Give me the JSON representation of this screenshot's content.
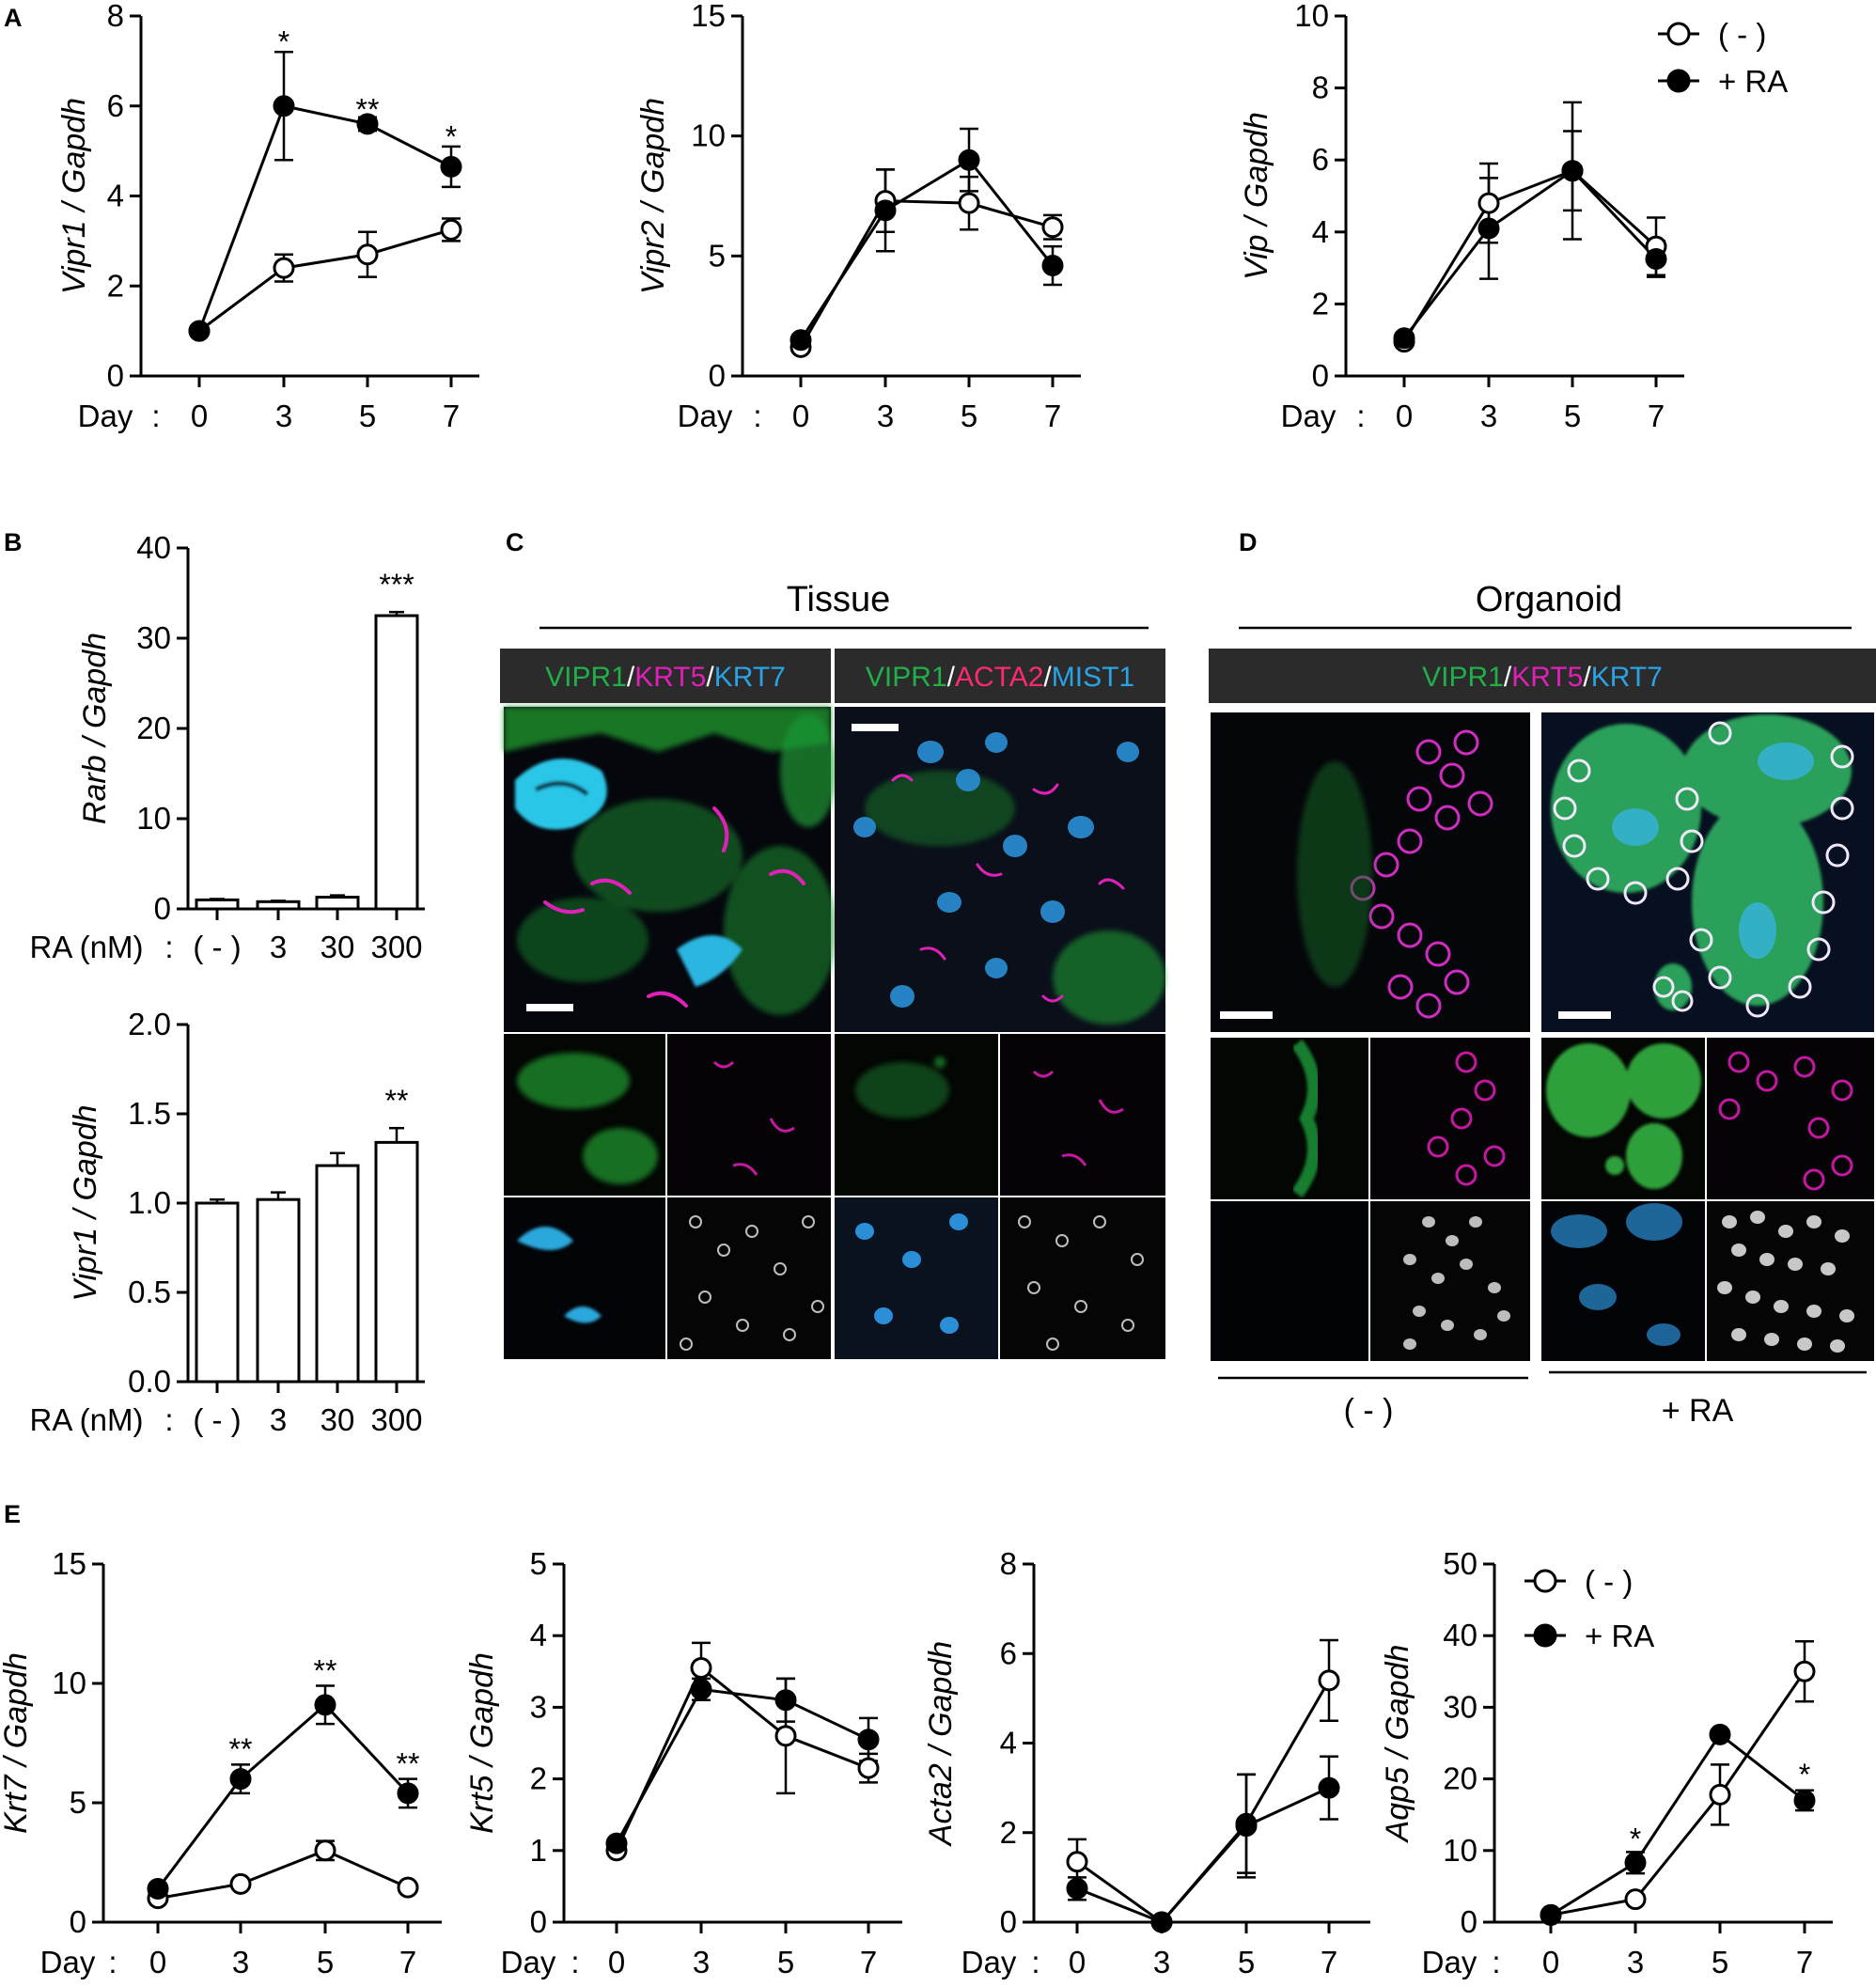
{
  "panel_labels": {
    "A": "A",
    "B": "B",
    "C": "C",
    "D": "D",
    "E": "E"
  },
  "legend": {
    "untreated": "( - )",
    "treated": "+ RA"
  },
  "day_prefix": "Day",
  "ra_prefix": "RA (nM)",
  "colors": {
    "green": "#1fb04a",
    "magenta": "#e020b8",
    "blue": "#29a3e6",
    "red": "#ff2a6e",
    "header_bg": "#2b2b2b"
  },
  "microscopy": {
    "C": {
      "title": "Tissue",
      "headers": [
        [
          {
            "text": "VIPR1",
            "color": "#1fb04a"
          },
          {
            "text": "/",
            "color": "#ffffff"
          },
          {
            "text": "KRT5",
            "color": "#e020b8"
          },
          {
            "text": "/",
            "color": "#ffffff"
          },
          {
            "text": "KRT7",
            "color": "#29a3e6"
          }
        ],
        [
          {
            "text": "VIPR1",
            "color": "#1fb04a"
          },
          {
            "text": "/",
            "color": "#ffffff"
          },
          {
            "text": "ACTA2",
            "color": "#ff2a6e"
          },
          {
            "text": "/",
            "color": "#ffffff"
          },
          {
            "text": "MIST1",
            "color": "#29a3e6"
          }
        ]
      ]
    },
    "D": {
      "title": "Organoid",
      "headers": [
        [
          {
            "text": "VIPR1",
            "color": "#1fb04a"
          },
          {
            "text": "/",
            "color": "#ffffff"
          },
          {
            "text": "KRT5",
            "color": "#e020b8"
          },
          {
            "text": "/",
            "color": "#ffffff"
          },
          {
            "text": "KRT7",
            "color": "#29a3e6"
          }
        ]
      ],
      "conditions": [
        "( - )",
        "+ RA"
      ]
    }
  },
  "chart_data": [
    {
      "id": "A1",
      "type": "line",
      "ylabel": "Vipr1 / Gapdh",
      "x": [
        "0",
        "3",
        "5",
        "7"
      ],
      "ylim": [
        0,
        8
      ],
      "yticks": [
        0,
        2,
        4,
        6,
        8
      ],
      "series": [
        {
          "name": "( - )",
          "filled": false,
          "values": [
            1.0,
            2.4,
            2.7,
            3.25
          ],
          "errors": [
            0.1,
            0.3,
            0.5,
            0.25
          ]
        },
        {
          "name": "+ RA",
          "filled": true,
          "values": [
            1.0,
            6.0,
            5.6,
            4.65
          ],
          "errors": [
            0.1,
            1.2,
            0.15,
            0.45
          ]
        }
      ],
      "annotations": [
        {
          "x": "3",
          "y": 7.4,
          "text": "*"
        },
        {
          "x": "5",
          "y": 5.9,
          "text": "**"
        },
        {
          "x": "7",
          "y": 5.3,
          "text": "*"
        }
      ]
    },
    {
      "id": "A2",
      "type": "line",
      "ylabel": "Vipr2 / Gapdh",
      "x": [
        "0",
        "3",
        "5",
        "7"
      ],
      "ylim": [
        0,
        15
      ],
      "yticks": [
        0,
        5,
        10,
        15
      ],
      "series": [
        {
          "name": "( - )",
          "filled": false,
          "values": [
            1.2,
            7.3,
            7.2,
            6.2
          ],
          "errors": [
            0.2,
            1.3,
            1.1,
            0.5
          ]
        },
        {
          "name": "+ RA",
          "filled": true,
          "values": [
            1.5,
            6.9,
            9.0,
            4.6
          ],
          "errors": [
            0.2,
            1.7,
            1.3,
            0.8
          ]
        }
      ],
      "annotations": []
    },
    {
      "id": "A3",
      "type": "line",
      "ylabel": "Vip / Gapdh",
      "x": [
        "0",
        "3",
        "5",
        "7"
      ],
      "ylim": [
        0,
        10
      ],
      "yticks": [
        0,
        2,
        4,
        6,
        8,
        10
      ],
      "series": [
        {
          "name": "( - )",
          "filled": false,
          "values": [
            0.95,
            4.8,
            5.7,
            3.6
          ],
          "errors": [
            0.1,
            1.1,
            1.1,
            0.8
          ]
        },
        {
          "name": "+ RA",
          "filled": true,
          "values": [
            1.05,
            4.1,
            5.7,
            3.25
          ],
          "errors": [
            0.1,
            1.4,
            1.9,
            0.5
          ]
        }
      ],
      "annotations": []
    },
    {
      "id": "B1",
      "type": "bar",
      "ylabel": "Rarb / Gapdh",
      "categories": [
        "( - )",
        "3",
        "30",
        "300"
      ],
      "ylim": [
        0,
        40
      ],
      "yticks": [
        0,
        10,
        20,
        30,
        40
      ],
      "values": [
        1.0,
        0.8,
        1.3,
        32.5
      ],
      "errors": [
        0.1,
        0.1,
        0.2,
        0.4
      ],
      "annotations": [
        {
          "index": 3,
          "text": "***"
        }
      ]
    },
    {
      "id": "B2",
      "type": "bar",
      "ylabel": "Vipr1 / Gapdh",
      "categories": [
        "( - )",
        "3",
        "30",
        "300"
      ],
      "ylim": [
        0,
        2.0
      ],
      "yticks": [
        "0.0",
        "0.5",
        "1.0",
        "1.5",
        "2.0"
      ],
      "values": [
        1.0,
        1.02,
        1.21,
        1.34
      ],
      "errors": [
        0.02,
        0.04,
        0.07,
        0.08
      ],
      "annotations": [
        {
          "index": 3,
          "text": "**"
        }
      ]
    },
    {
      "id": "E1",
      "type": "line",
      "ylabel": "Krt7 / Gapdh",
      "x": [
        "0",
        "3",
        "5",
        "7"
      ],
      "ylim": [
        0,
        15
      ],
      "yticks": [
        0,
        5,
        10,
        15
      ],
      "series": [
        {
          "name": "( - )",
          "filled": false,
          "values": [
            1.0,
            1.6,
            3.0,
            1.45
          ],
          "errors": [
            0.1,
            0.1,
            0.4,
            0.1
          ]
        },
        {
          "name": "+ RA",
          "filled": true,
          "values": [
            1.4,
            6.0,
            9.1,
            5.4
          ],
          "errors": [
            0.2,
            0.6,
            0.8,
            0.6
          ]
        }
      ],
      "annotations": [
        {
          "x": "3",
          "y": 7.2,
          "text": "**"
        },
        {
          "x": "5",
          "y": 10.5,
          "text": "**"
        },
        {
          "x": "7",
          "y": 6.6,
          "text": "**"
        }
      ]
    },
    {
      "id": "E2",
      "type": "line",
      "ylabel": "Krt5 / Gapdh",
      "x": [
        "0",
        "3",
        "5",
        "7"
      ],
      "ylim": [
        0,
        5
      ],
      "yticks": [
        0,
        1,
        2,
        3,
        4,
        5
      ],
      "series": [
        {
          "name": "( - )",
          "filled": false,
          "values": [
            1.0,
            3.55,
            2.6,
            2.15
          ],
          "errors": [
            0.05,
            0.35,
            0.8,
            0.2
          ]
        },
        {
          "name": "+ RA",
          "filled": true,
          "values": [
            1.1,
            3.25,
            3.1,
            2.55
          ],
          "errors": [
            0.05,
            0.15,
            0.3,
            0.3
          ]
        }
      ],
      "annotations": []
    },
    {
      "id": "E3",
      "type": "line",
      "ylabel": "Acta2 / Gapdh",
      "x": [
        "0",
        "3",
        "5",
        "7"
      ],
      "ylim": [
        0,
        8
      ],
      "yticks": [
        0,
        2,
        4,
        6,
        8
      ],
      "series": [
        {
          "name": "( - )",
          "filled": false,
          "values": [
            1.35,
            0.0,
            2.2,
            5.4
          ],
          "errors": [
            0.5,
            0.05,
            1.1,
            0.9
          ]
        },
        {
          "name": "+ RA",
          "filled": true,
          "values": [
            0.75,
            0.0,
            2.15,
            3.0
          ],
          "errors": [
            0.25,
            0.05,
            1.15,
            0.7
          ]
        }
      ],
      "annotations": []
    },
    {
      "id": "E4",
      "type": "line",
      "ylabel": "Aqp5 / Gapdh",
      "x": [
        "0",
        "3",
        "5",
        "7"
      ],
      "ylim": [
        0,
        50
      ],
      "yticks": [
        0,
        10,
        20,
        30,
        40,
        50
      ],
      "series": [
        {
          "name": "( - )",
          "filled": false,
          "values": [
            1.0,
            3.2,
            17.8,
            35.0
          ],
          "errors": [
            0.2,
            0.3,
            4.2,
            4.2
          ]
        },
        {
          "name": "+ RA",
          "filled": true,
          "values": [
            1.0,
            8.3,
            26.2,
            17.0
          ],
          "errors": [
            0.2,
            1.5,
            0.6,
            1.4
          ]
        }
      ],
      "annotations": [
        {
          "x": "3",
          "y": 11.5,
          "text": "*"
        },
        {
          "x": "7",
          "y": 20.5,
          "text": "*"
        }
      ]
    }
  ]
}
